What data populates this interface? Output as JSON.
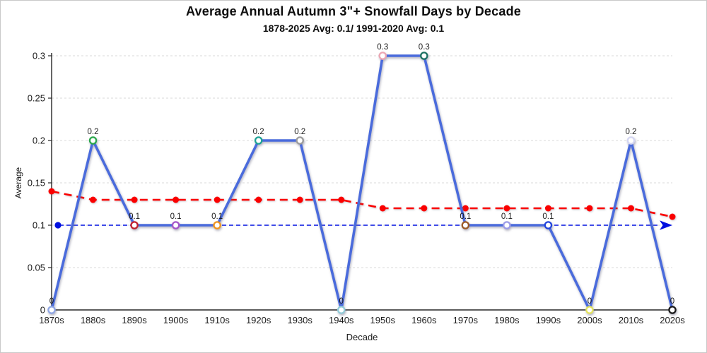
{
  "chart_data": {
    "type": "line",
    "title": "Average Annual Autumn 3\"+ Snowfall Days by Decade",
    "subtitle": "1878-2025 Avg: 0.1/ 1991-2020 Avg: 0.1",
    "xlabel": "Decade",
    "ylabel": "Average",
    "ylim": [
      0,
      0.3
    ],
    "yticks": [
      0,
      0.05,
      0.1,
      0.15,
      0.2,
      0.25,
      0.3
    ],
    "grid": true,
    "legend": "none",
    "categories": [
      "1870s",
      "1880s",
      "1890s",
      "1900s",
      "1910s",
      "1920s",
      "1930s",
      "1940s",
      "1950s",
      "1960s",
      "1970s",
      "1980s",
      "1990s",
      "2000s",
      "2010s",
      "2020s"
    ],
    "series": [
      {
        "name": "decade-average",
        "style": "solid-line-open-markers",
        "color": "#4a6bdc",
        "values": [
          0,
          0.2,
          0.1,
          0.1,
          0.1,
          0.2,
          0.2,
          0,
          0.3,
          0.3,
          0.1,
          0.1,
          0.1,
          0,
          0.2,
          0
        ],
        "data_labels": [
          "0",
          "0.2",
          "0.1",
          "0.1",
          "0.1",
          "0.2",
          "0.2",
          "0",
          "0.3",
          "0.3",
          "0.1",
          "0.1",
          "0.1",
          "0",
          "0.2",
          "0"
        ],
        "marker_colors": [
          "#8fa6e4",
          "#2aa74a",
          "#c2202e",
          "#a456c9",
          "#f0941f",
          "#1ea295",
          "#9b9b9b",
          "#92ccd9",
          "#eca6b3",
          "#1d7263",
          "#9c5a26",
          "#9c9ce8",
          "#2244dd",
          "#e4e45e",
          "#d4d6f2",
          "#1a1a1a"
        ]
      },
      {
        "name": "trend",
        "style": "dashed-line-filled-dots",
        "color": "#fa0000",
        "values": [
          0.14,
          0.13,
          0.13,
          0.13,
          0.13,
          0.13,
          0.13,
          0.13,
          0.12,
          0.12,
          0.12,
          0.12,
          0.12,
          0.12,
          0.12,
          0.11
        ]
      },
      {
        "name": "mean-reference",
        "style": "dashed-arrow-line",
        "color": "#0010e0",
        "value": 0.1
      }
    ]
  }
}
